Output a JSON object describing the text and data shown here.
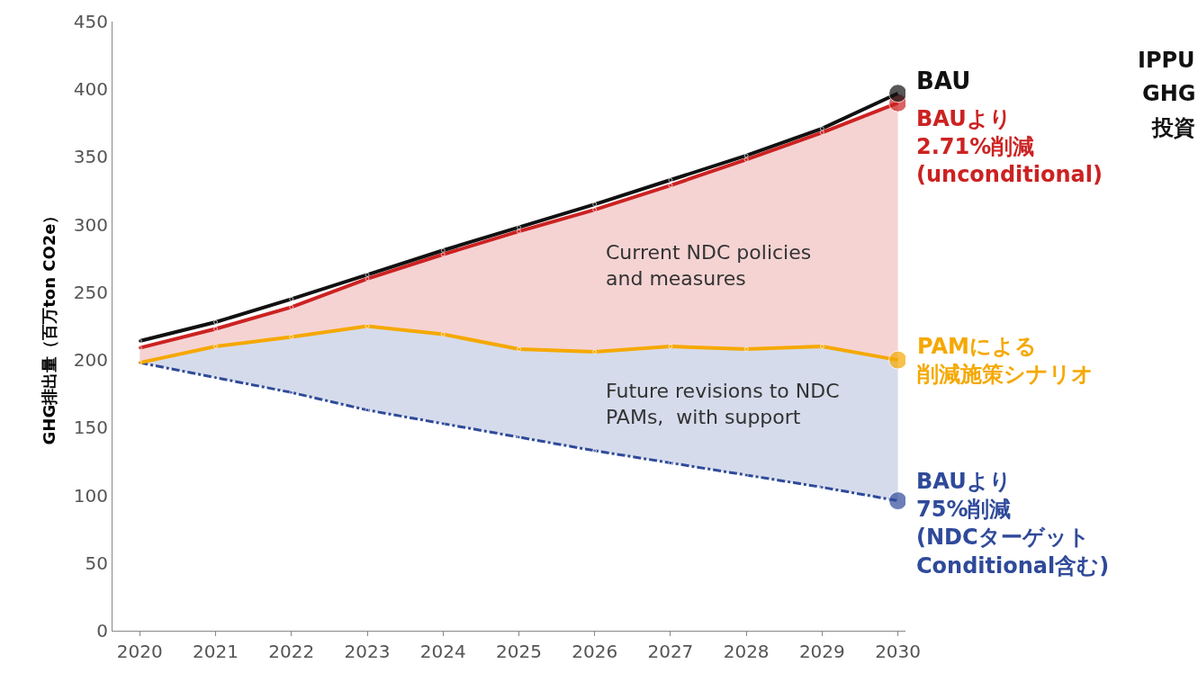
{
  "chart_data": {
    "type": "line",
    "ylabel": "GHG排出量（百万ton CO2e）",
    "x": [
      2020,
      2021,
      2022,
      2023,
      2024,
      2025,
      2026,
      2027,
      2028,
      2029,
      2030
    ],
    "xlim": [
      2019.64,
      2030.1
    ],
    "xticks": [
      2020,
      2021,
      2022,
      2023,
      2024,
      2025,
      2026,
      2027,
      2028,
      2029,
      2030
    ],
    "ylim": [
      0,
      450
    ],
    "yticks": [
      0,
      50,
      100,
      150,
      200,
      250,
      300,
      350,
      400,
      450
    ],
    "legend": false,
    "marker": "circle",
    "series": [
      {
        "name": "BAUより\n75%削減\n(NDCターゲット\nConditional含む)",
        "color": "#2f4a9a",
        "line_style": "dashed",
        "values": [
          198,
          187,
          176,
          163,
          153,
          143,
          133,
          124,
          115,
          106,
          96
        ]
      },
      {
        "name": "PAMによる削減施策シナリオ",
        "color": "#f5a800",
        "type": "area",
        "values": [
          198,
          210,
          217,
          225,
          219,
          208,
          206,
          210,
          208,
          210,
          200
        ]
      },
      {
        "name": "BAUより\n2.71%削減\n(unconditional)",
        "color": "#cc2222",
        "type": "area",
        "values": [
          209,
          223,
          239,
          260,
          278,
          295,
          311,
          329,
          348,
          368,
          390
        ]
      },
      {
        "name": "BAU",
        "color": "#111111",
        "values": [
          214,
          228,
          245,
          263,
          281,
          298,
          315,
          333,
          351,
          371,
          397
        ]
      }
    ],
    "annotations": [
      "Current NDC policies\nand measures",
      "Future revisions to NDC\nPAMs,  with support",
      "IPPU",
      "GHG",
      "投資"
    ]
  }
}
